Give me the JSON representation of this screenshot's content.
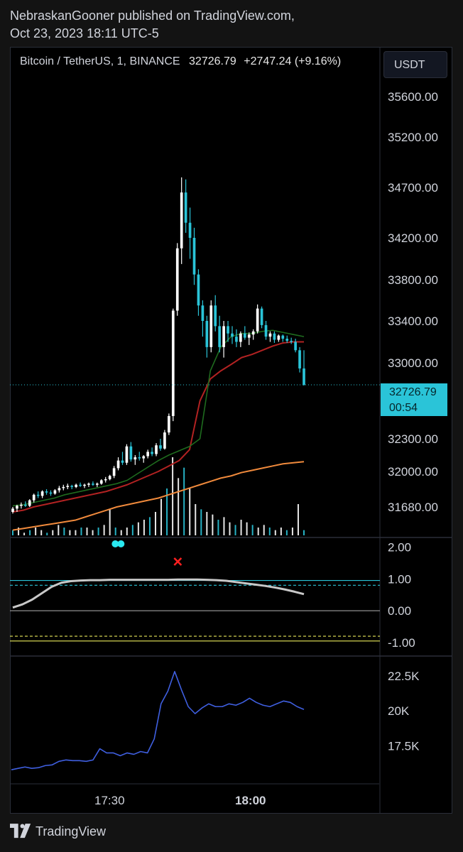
{
  "header": {
    "line1": "NebraskanGooner published on TradingView.com,",
    "line2": "Oct 23, 2023 18:11 UTC-5"
  },
  "symbol": {
    "name": "Bitcoin / TetherUS, 1, BINANCE",
    "price": "32726.79",
    "change": "+2747.24 (+9.16%)"
  },
  "currency": "USDT",
  "price_tag": {
    "price": "32726.79",
    "countdown": "00:54"
  },
  "footer": {
    "brand": "TradingView"
  },
  "colors": {
    "bull": "#ffffff",
    "bear": "#2ac4d8",
    "ema_fast": "#1e6b1e",
    "ema_mid": "#b22222",
    "ema_slow": "#f08a3c",
    "line_blue": "#3f5fe0",
    "osc": "#c8c8c8"
  },
  "chart_data": [
    {
      "type": "candlestick",
      "title": "Bitcoin / TetherUS, 1, BINANCE",
      "y_ticks": [
        "35600.00",
        "35200.00",
        "34700.00",
        "34200.00",
        "33800.00",
        "33400.00",
        "33000.00",
        "32300.00",
        "32000.00",
        "31680.00"
      ],
      "x_ticks": [
        "17:30",
        "18:00"
      ],
      "last_price": 32726.79,
      "candles": [
        [
          31650,
          31680,
          31640,
          31670
        ],
        [
          31670,
          31700,
          31650,
          31690
        ],
        [
          31690,
          31720,
          31670,
          31700
        ],
        [
          31700,
          31730,
          31680,
          31690
        ],
        [
          31690,
          31750,
          31680,
          31740
        ],
        [
          31740,
          31800,
          31720,
          31790
        ],
        [
          31790,
          31820,
          31760,
          31780
        ],
        [
          31780,
          31830,
          31760,
          31820
        ],
        [
          31820,
          31840,
          31790,
          31810
        ],
        [
          31810,
          31830,
          31780,
          31800
        ],
        [
          31800,
          31840,
          31790,
          31830
        ],
        [
          31830,
          31870,
          31810,
          31850
        ],
        [
          31850,
          31880,
          31830,
          31860
        ],
        [
          31860,
          31890,
          31840,
          31870
        ],
        [
          31870,
          31880,
          31840,
          31860
        ],
        [
          31860,
          31890,
          31850,
          31880
        ],
        [
          31880,
          31900,
          31860,
          31870
        ],
        [
          31870,
          31890,
          31850,
          31880
        ],
        [
          31880,
          31900,
          31860,
          31890
        ],
        [
          31890,
          31910,
          31870,
          31880
        ],
        [
          31880,
          31900,
          31860,
          31890
        ],
        [
          31890,
          31930,
          31880,
          31920
        ],
        [
          31920,
          31950,
          31900,
          31930
        ],
        [
          31930,
          31970,
          31920,
          31960
        ],
        [
          31960,
          32050,
          31940,
          32030
        ],
        [
          32030,
          32130,
          32010,
          32100
        ],
        [
          32100,
          32180,
          32060,
          32080
        ],
        [
          32080,
          32250,
          32060,
          32230
        ],
        [
          32230,
          32270,
          32090,
          32110
        ],
        [
          32110,
          32150,
          32060,
          32130
        ],
        [
          32130,
          32180,
          32100,
          32120
        ],
        [
          32120,
          32150,
          32080,
          32140
        ],
        [
          32140,
          32200,
          32120,
          32180
        ],
        [
          32180,
          32220,
          32140,
          32160
        ],
        [
          32160,
          32260,
          32140,
          32240
        ],
        [
          32240,
          32300,
          32190,
          32210
        ],
        [
          32210,
          32370,
          32200,
          32350
        ],
        [
          32350,
          32500,
          32330,
          32480
        ],
        [
          32480,
          33520,
          32440,
          33500
        ],
        [
          33500,
          34150,
          33450,
          34100
        ],
        [
          34100,
          34800,
          33950,
          34650
        ],
        [
          34650,
          34780,
          34250,
          34350
        ],
        [
          34350,
          34500,
          34000,
          34200
        ],
        [
          34200,
          34300,
          33750,
          33850
        ],
        [
          33850,
          33900,
          33450,
          33550
        ],
        [
          33550,
          33600,
          33250,
          33400
        ],
        [
          33400,
          33450,
          33050,
          33150
        ],
        [
          33150,
          33600,
          33100,
          33550
        ],
        [
          33550,
          33650,
          33300,
          33350
        ],
        [
          33350,
          33450,
          33100,
          33150
        ],
        [
          33150,
          33400,
          33050,
          33350
        ],
        [
          33350,
          33400,
          33200,
          33280
        ],
        [
          33280,
          33350,
          33180,
          33250
        ],
        [
          33250,
          33320,
          33150,
          33200
        ],
        [
          33200,
          33300,
          33150,
          33280
        ],
        [
          33280,
          33350,
          33220,
          33240
        ],
        [
          33240,
          33290,
          33170,
          33270
        ],
        [
          33270,
          33320,
          33220,
          33300
        ],
        [
          33300,
          33560,
          33280,
          33520
        ],
        [
          33520,
          33540,
          33330,
          33360
        ],
        [
          33360,
          33400,
          33220,
          33250
        ],
        [
          33250,
          33300,
          33200,
          33280
        ],
        [
          33280,
          33300,
          33190,
          33220
        ],
        [
          33220,
          33270,
          33200,
          33260
        ],
        [
          33260,
          33270,
          33200,
          33230
        ],
        [
          33230,
          33260,
          33190,
          33210
        ],
        [
          33210,
          33240,
          33180,
          33200
        ],
        [
          33200,
          33230,
          33100,
          33120
        ],
        [
          33120,
          33150,
          32880,
          32930
        ],
        [
          32930,
          33120,
          32720,
          32727
        ]
      ],
      "ema_fast": [
        31690,
        31700,
        31720,
        31740,
        31760,
        31790,
        31810,
        31830,
        31850,
        31870,
        31890,
        31920,
        31980,
        32040,
        32100,
        32150,
        32190,
        32230,
        32300,
        32900,
        33150,
        33250,
        33280,
        33280,
        33300,
        33310,
        33290,
        33270,
        33250
      ],
      "ema_mid": [
        31650,
        31660,
        31680,
        31700,
        31720,
        31740,
        31760,
        31780,
        31800,
        31820,
        31850,
        31880,
        31920,
        31960,
        32000,
        32050,
        32100,
        32200,
        32600,
        32800,
        32900,
        32980,
        33050,
        33080,
        33120,
        33160,
        33190,
        33200,
        33200
      ],
      "ema_slow": [
        31540,
        31550,
        31560,
        31570,
        31580,
        31590,
        31600,
        31620,
        31640,
        31660,
        31680,
        31700,
        31720,
        31740,
        31760,
        31790,
        31820,
        31850,
        31880,
        31910,
        31940,
        31960,
        31990,
        32010,
        32030,
        32050,
        32070,
        32080,
        32090
      ],
      "volume": [
        2,
        3,
        1,
        2,
        3,
        2,
        1,
        2,
        4,
        3,
        2,
        2,
        3,
        3,
        2,
        3,
        4,
        10,
        3,
        2,
        3,
        4,
        5,
        6,
        7,
        9,
        14,
        18,
        30,
        22,
        26,
        18,
        12,
        10,
        9,
        8,
        6,
        7,
        5,
        4,
        6,
        5,
        4,
        3,
        4,
        3,
        2,
        3,
        2,
        3,
        12,
        2
      ]
    },
    {
      "type": "line",
      "title": "",
      "y_ticks": [
        "2.00",
        "1.00",
        "0.00",
        "-1.00"
      ],
      "ylim": [
        -1.2,
        2.1
      ],
      "levels": [
        0.95,
        0.8,
        0.0,
        -0.8,
        -0.95
      ],
      "markers": [
        {
          "x": 11,
          "label": "●●"
        },
        {
          "x": 17,
          "label": "✕"
        }
      ],
      "values": [
        0.1,
        0.2,
        0.35,
        0.55,
        0.75,
        0.88,
        0.93,
        0.95,
        0.96,
        0.96,
        0.97,
        0.97,
        0.97,
        0.97,
        0.97,
        0.97,
        0.97,
        0.98,
        0.98,
        0.98,
        0.97,
        0.96,
        0.94,
        0.9,
        0.86,
        0.82,
        0.78,
        0.73,
        0.67,
        0.6,
        0.52
      ]
    },
    {
      "type": "line",
      "title": "",
      "y_ticks": [
        "22.5K",
        "20K",
        "17.5K"
      ],
      "ylim": [
        15000,
        23500
      ],
      "values": [
        15800,
        15900,
        16000,
        15900,
        15950,
        16100,
        16150,
        16400,
        16500,
        16450,
        16450,
        16400,
        16500,
        17300,
        17000,
        17000,
        16800,
        17000,
        16900,
        17100,
        17000,
        18000,
        20500,
        21400,
        22800,
        21500,
        20300,
        19800,
        20200,
        20500,
        20300,
        20300,
        20500,
        20400,
        20600,
        20900,
        20600,
        20400,
        20300,
        20500,
        20700,
        20600,
        20300,
        20100
      ]
    }
  ]
}
